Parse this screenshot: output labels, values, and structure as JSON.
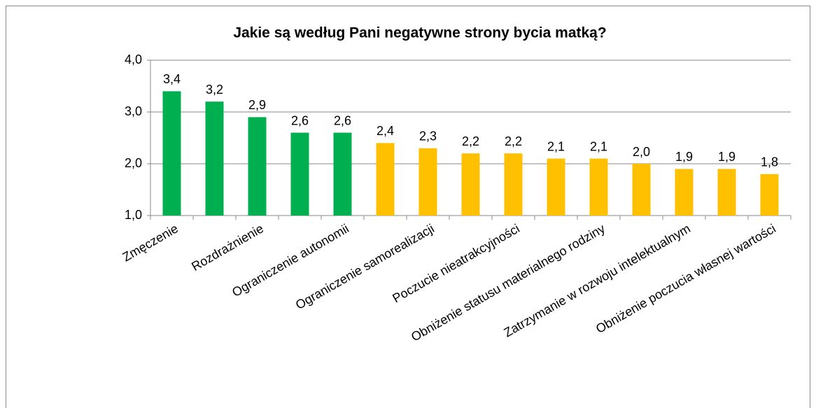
{
  "chart_data": {
    "type": "bar",
    "title": "Jakie są według Pani negatywne strony bycia matką?",
    "categories": [
      "Zmęczenie",
      null,
      "Rozdrażnienie",
      null,
      "Ograniczenie autonomii",
      null,
      "Ograniczenie samorealizacji",
      null,
      "Poczucie nieatrakcyjności",
      null,
      "Obniżenie statusu materialnego rodziny",
      null,
      "Zatrzymanie w rozwoju intelektualnym",
      null,
      "Obniżenie poczucia własnej wartości"
    ],
    "values": [
      3.4,
      3.2,
      2.9,
      2.6,
      2.6,
      2.4,
      2.3,
      2.2,
      2.2,
      2.1,
      2.1,
      2.0,
      1.9,
      1.9,
      1.8
    ],
    "value_labels": [
      "3,4",
      "3,2",
      "2,9",
      "2,6",
      "2,6",
      "2,4",
      "2,3",
      "2,2",
      "2,2",
      "2,1",
      "2,1",
      "2,0",
      "1,9",
      "1,9",
      "1,8"
    ],
    "colors": [
      "#00b050",
      "#00b050",
      "#00b050",
      "#00b050",
      "#00b050",
      "#ffc000",
      "#ffc000",
      "#ffc000",
      "#ffc000",
      "#ffc000",
      "#ffc000",
      "#ffc000",
      "#ffc000",
      "#ffc000",
      "#ffc000"
    ],
    "ylim": [
      1,
      4
    ],
    "yticks": [
      {
        "value": 1,
        "label": "1,0"
      },
      {
        "value": 2,
        "label": "2,0"
      },
      {
        "value": 3,
        "label": "3,0"
      },
      {
        "value": 4,
        "label": "4,0"
      }
    ],
    "grid": true
  }
}
